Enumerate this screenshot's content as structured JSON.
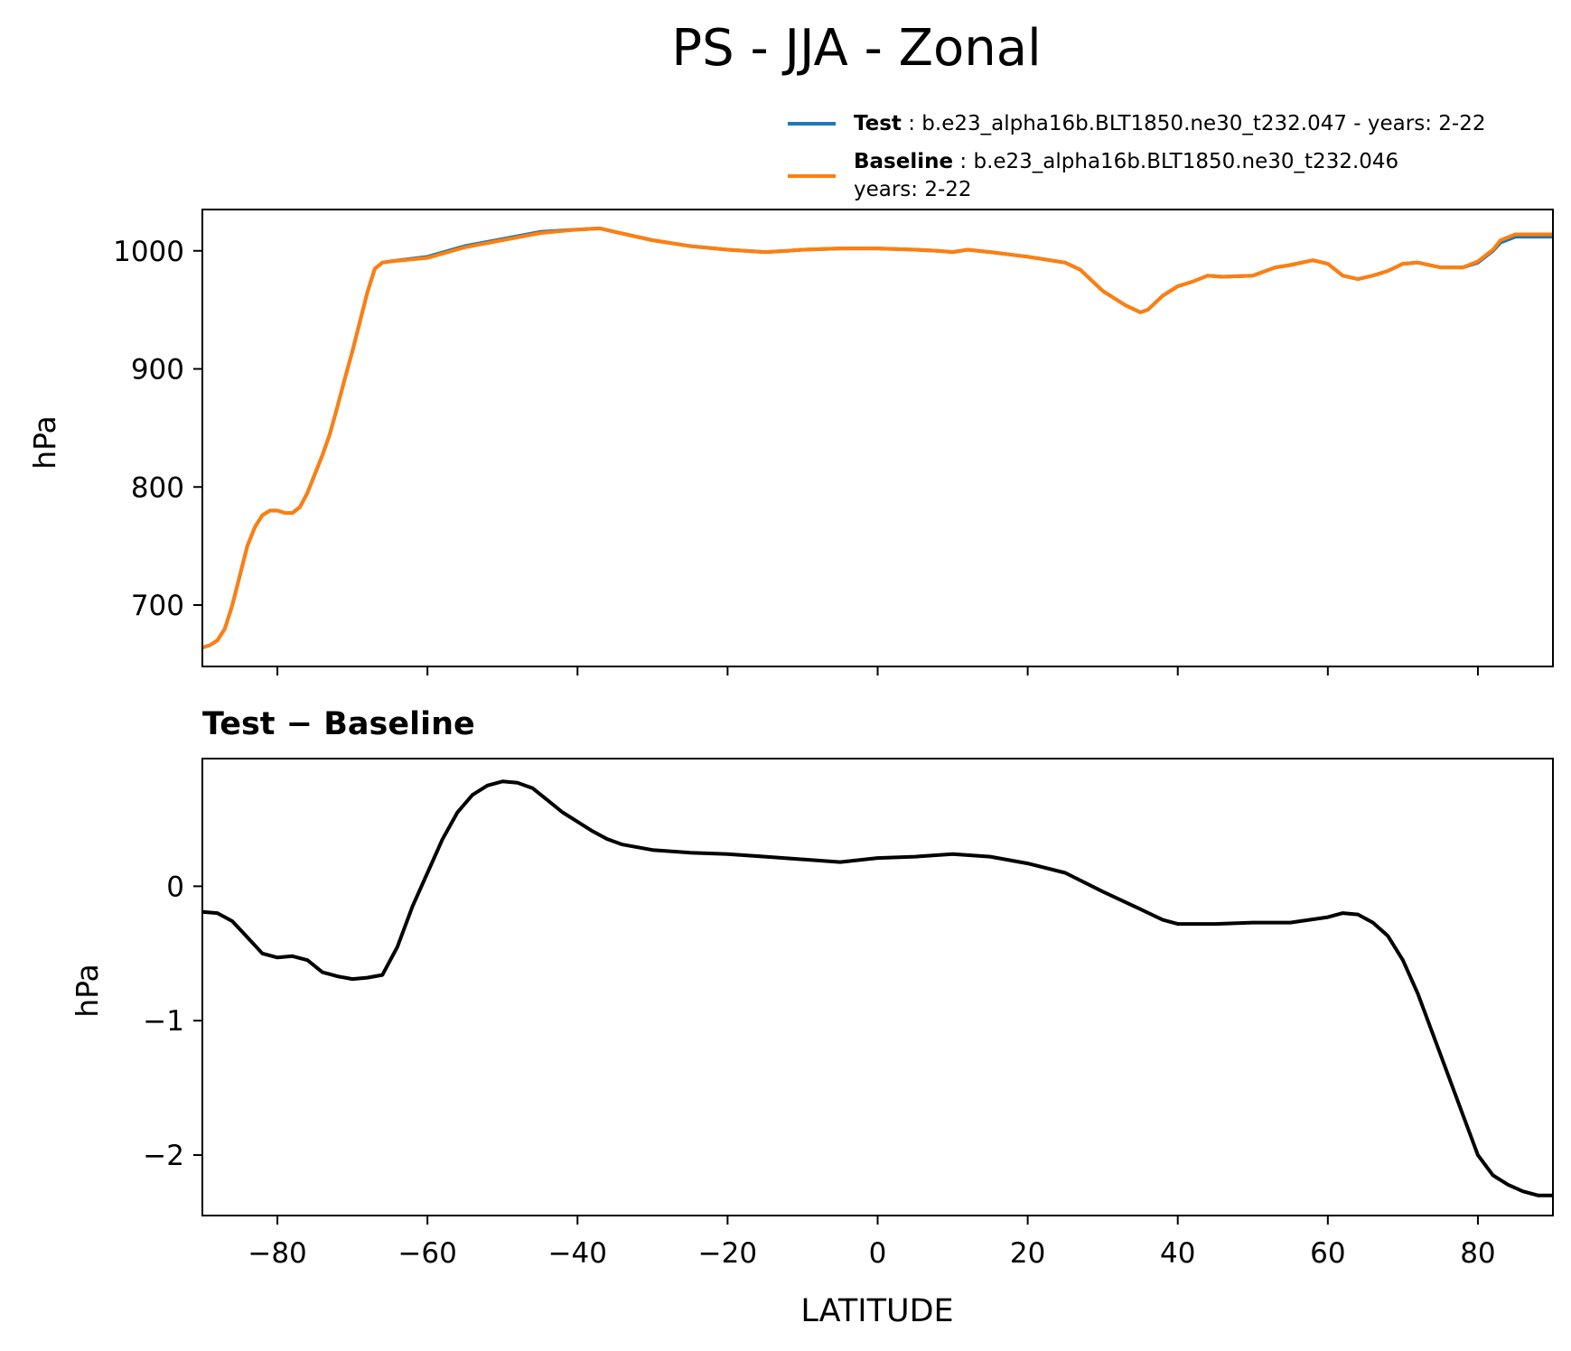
{
  "title": "PS - JJA - Zonal",
  "legend": {
    "test": {
      "label": "Test",
      "text": ": b.e23_alpha16b.BLT1850.ne30_t232.047 - years: 2-22",
      "color": "#1f77b4"
    },
    "baseline": {
      "label": "Baseline",
      "text_line1": ": b.e23_alpha16b.BLT1850.ne30_t232.046",
      "text_line2": "years: 2-22",
      "color": "#ff7f0e"
    }
  },
  "diff_title": "Test − Baseline",
  "chart_data": [
    {
      "type": "line",
      "title": "PS - JJA - Zonal",
      "xlabel": "",
      "ylabel": "hPa",
      "xlim": [
        -90,
        90
      ],
      "ylim": [
        648,
        1035
      ],
      "xticks": [
        -80,
        -60,
        -40,
        -20,
        0,
        20,
        40,
        60,
        80
      ],
      "yticks": [
        700,
        800,
        900,
        1000
      ],
      "ytick_labels": [
        "700",
        "800",
        "900",
        "1000"
      ],
      "series": [
        {
          "name": "Test",
          "color": "#1f77b4",
          "x": [
            -90,
            -89,
            -88,
            -87,
            -86,
            -85,
            -84,
            -83,
            -82,
            -81,
            -80,
            -79,
            -78,
            -77,
            -76,
            -75,
            -74,
            -73,
            -72,
            -71,
            -70,
            -69,
            -68,
            -67,
            -66,
            -65,
            -60,
            -55,
            -50,
            -45,
            -40,
            -37,
            -35,
            -30,
            -25,
            -20,
            -15,
            -12,
            -10,
            -5,
            0,
            5,
            8,
            10,
            12,
            15,
            20,
            25,
            27,
            30,
            33,
            35,
            36,
            38,
            40,
            42,
            44,
            46,
            50,
            53,
            55,
            58,
            60,
            62,
            64,
            66,
            68,
            70,
            72,
            75,
            78,
            80,
            82,
            83,
            85,
            90
          ],
          "values": [
            664,
            666,
            670,
            680,
            700,
            725,
            750,
            766,
            776,
            780,
            780,
            778,
            778,
            783,
            795,
            811,
            827,
            845,
            868,
            892,
            915,
            940,
            965,
            985,
            990,
            991,
            995,
            1004,
            1010,
            1016,
            1018,
            1019,
            1016,
            1009,
            1004,
            1001,
            999,
            1000,
            1001,
            1002,
            1002,
            1001,
            1000,
            999,
            1001,
            999,
            995,
            990,
            984,
            966,
            954,
            948,
            950,
            962,
            970,
            974,
            979,
            978,
            979,
            986,
            988,
            992,
            989,
            979,
            976,
            979,
            983,
            989,
            990,
            986,
            986,
            990,
            1000,
            1007,
            1012,
            1012
          ]
        },
        {
          "name": "Baseline",
          "color": "#ff7f0e",
          "x": [
            -90,
            -89,
            -88,
            -87,
            -86,
            -85,
            -84,
            -83,
            -82,
            -81,
            -80,
            -79,
            -78,
            -77,
            -76,
            -75,
            -74,
            -73,
            -72,
            -71,
            -70,
            -69,
            -68,
            -67,
            -66,
            -65,
            -60,
            -55,
            -50,
            -45,
            -40,
            -37,
            -35,
            -30,
            -25,
            -20,
            -15,
            -12,
            -10,
            -5,
            0,
            5,
            8,
            10,
            12,
            15,
            20,
            25,
            27,
            30,
            33,
            35,
            36,
            38,
            40,
            42,
            44,
            46,
            50,
            53,
            55,
            58,
            60,
            62,
            64,
            66,
            68,
            70,
            72,
            75,
            78,
            80,
            82,
            83,
            85,
            90
          ],
          "values": [
            664,
            666,
            670,
            680,
            700,
            725,
            750,
            766,
            776,
            780,
            780,
            778,
            778,
            783,
            795,
            811,
            827,
            845,
            868,
            892,
            915,
            940,
            965,
            985,
            990,
            991,
            994,
            1003,
            1009,
            1015,
            1018,
            1019,
            1016,
            1009,
            1004,
            1001,
            999,
            1000,
            1001,
            1002,
            1002,
            1001,
            1000,
            999,
            1001,
            999,
            995,
            990,
            984,
            966,
            954,
            948,
            950,
            962,
            970,
            974,
            979,
            978,
            979,
            986,
            988,
            992,
            989,
            979,
            976,
            979,
            983,
            989,
            990,
            986,
            986,
            991,
            1001,
            1009,
            1014,
            1014
          ]
        }
      ]
    },
    {
      "type": "line",
      "title": "Test − Baseline",
      "xlabel": "LATITUDE",
      "ylabel": "hPa",
      "xlim": [
        -90,
        90
      ],
      "ylim": [
        -2.45,
        0.95
      ],
      "xticks": [
        -80,
        -60,
        -40,
        -20,
        0,
        20,
        40,
        60,
        80
      ],
      "xtick_labels": [
        "−80",
        "−60",
        "−40",
        "−20",
        "0",
        "20",
        "40",
        "60",
        "80"
      ],
      "yticks": [
        -2,
        -1,
        0
      ],
      "ytick_labels": [
        "−2",
        "−1",
        "0"
      ],
      "series": [
        {
          "name": "Test − Baseline",
          "color": "#000000",
          "x": [
            -90,
            -88,
            -86,
            -84,
            -82,
            -80,
            -78,
            -76,
            -74,
            -72,
            -70,
            -68,
            -66,
            -64,
            -62,
            -60,
            -58,
            -56,
            -54,
            -52,
            -50,
            -48,
            -46,
            -44,
            -42,
            -40,
            -38,
            -36,
            -34,
            -32,
            -30,
            -25,
            -20,
            -15,
            -10,
            -5,
            0,
            5,
            10,
            15,
            20,
            25,
            30,
            35,
            38,
            40,
            42,
            45,
            50,
            55,
            60,
            62,
            64,
            66,
            68,
            70,
            72,
            74,
            76,
            78,
            80,
            82,
            84,
            86,
            88,
            90
          ],
          "values": [
            -0.19,
            -0.2,
            -0.26,
            -0.38,
            -0.5,
            -0.53,
            -0.52,
            -0.55,
            -0.64,
            -0.67,
            -0.69,
            -0.68,
            -0.66,
            -0.45,
            -0.15,
            0.1,
            0.35,
            0.55,
            0.68,
            0.75,
            0.78,
            0.77,
            0.73,
            0.64,
            0.55,
            0.48,
            0.41,
            0.35,
            0.31,
            0.29,
            0.27,
            0.25,
            0.24,
            0.22,
            0.2,
            0.18,
            0.21,
            0.22,
            0.24,
            0.22,
            0.17,
            0.1,
            -0.04,
            -0.17,
            -0.25,
            -0.28,
            -0.28,
            -0.28,
            -0.27,
            -0.27,
            -0.23,
            -0.2,
            -0.21,
            -0.27,
            -0.37,
            -0.55,
            -0.8,
            -1.1,
            -1.4,
            -1.7,
            -2.0,
            -2.15,
            -2.22,
            -2.27,
            -2.3,
            -2.3
          ]
        }
      ]
    }
  ]
}
